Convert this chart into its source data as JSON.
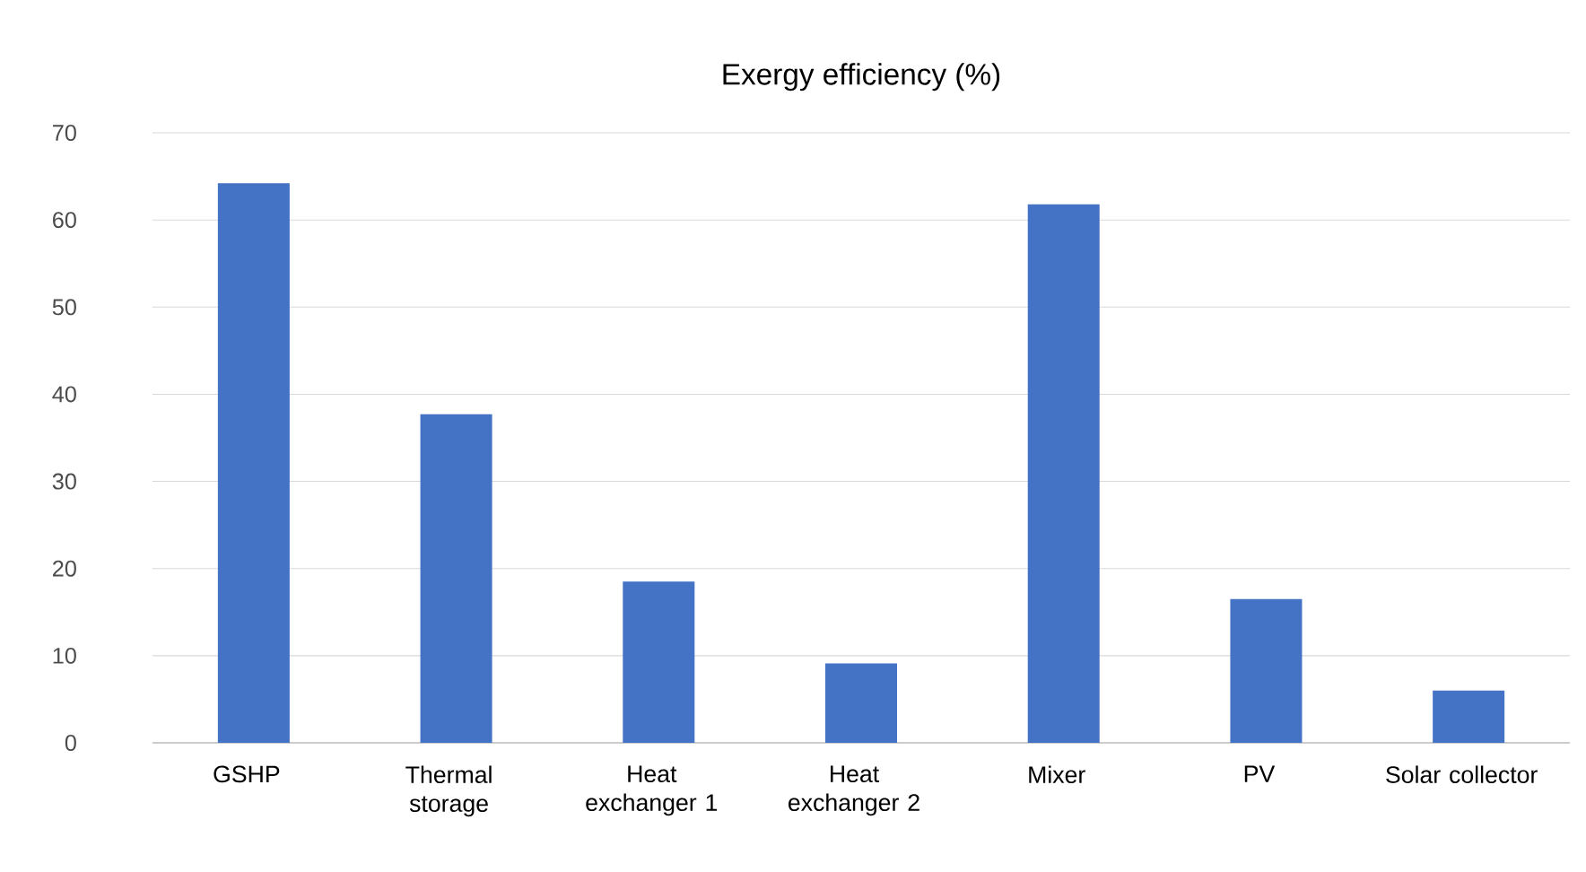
{
  "chart_data": {
    "type": "bar",
    "title": "Exergy efficiency (%)",
    "categories": [
      "GSHP",
      "Thermal storage",
      "Heat exchanger 1",
      "Heat exchanger 2",
      "Mixer",
      "PV",
      "Solar collector"
    ],
    "values": [
      64.2,
      37.7,
      18.5,
      9.1,
      61.8,
      16.5,
      6.0
    ],
    "color": "#4472c4",
    "ylim": [
      0,
      70
    ],
    "yticks": [
      0,
      10,
      20,
      30,
      40,
      50,
      60,
      70
    ],
    "grid": "y"
  }
}
